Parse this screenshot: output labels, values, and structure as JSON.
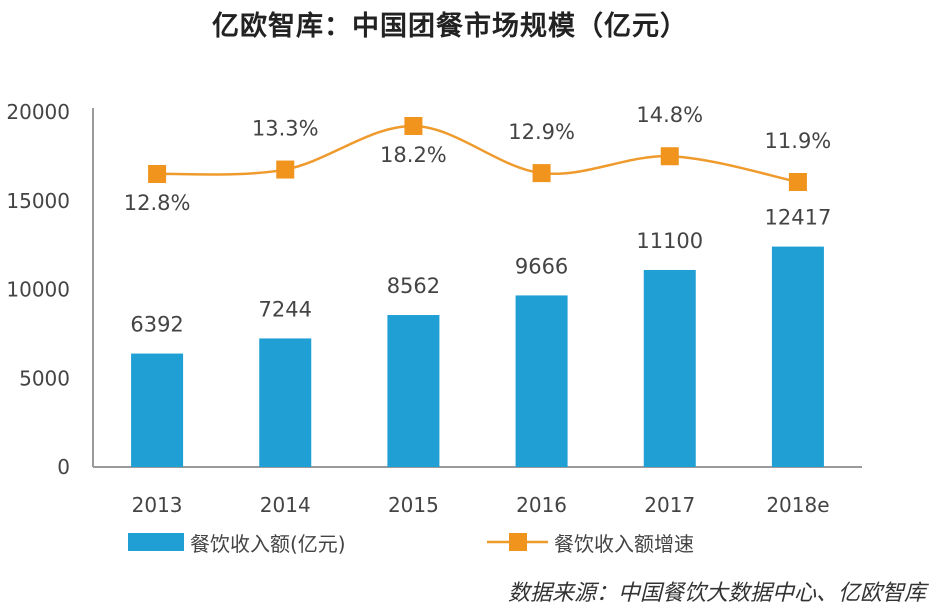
{
  "title": "亿欧智库：中国团餐市场规模（亿元）",
  "source": "数据来源：中国餐饮大数据中心、亿欧智库",
  "colors": {
    "bar": "#1f9fd4",
    "line": "#ef9a2d",
    "marker": "#f0941e",
    "axis": "#9a9a9a",
    "text": "#444444"
  },
  "chart_data": {
    "type": "bar",
    "categories": [
      "2013",
      "2014",
      "2015",
      "2016",
      "2017",
      "2018e"
    ],
    "ylim": [
      0,
      20000
    ],
    "yticks": [
      0,
      5000,
      10000,
      15000,
      20000
    ],
    "series": [
      {
        "name": "餐饮收入额(亿元)",
        "type": "bar",
        "values": [
          6392,
          7244,
          8562,
          9666,
          11100,
          12417
        ]
      },
      {
        "name": "餐饮收入额增速",
        "type": "line",
        "values": [
          12.8,
          13.3,
          18.2,
          12.9,
          14.8,
          11.9
        ],
        "labels": [
          "12.8%",
          "13.3%",
          "18.2%",
          "12.9%",
          "14.8%",
          "11.9%"
        ]
      }
    ],
    "legend_position": "bottom"
  }
}
